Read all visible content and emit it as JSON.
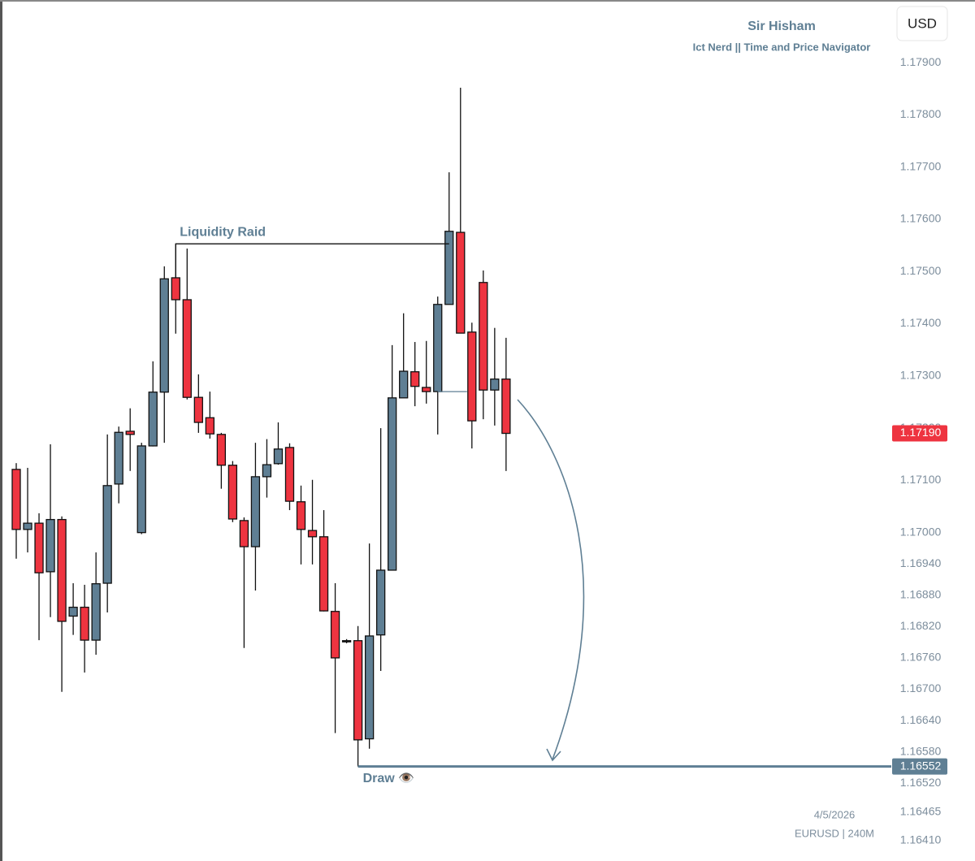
{
  "header": {
    "title": "Sir Hisham",
    "subtitle": "Ict Nerd || Time and Price Navigator",
    "currency": "USD"
  },
  "footer": {
    "date": "4/5/2026",
    "symbol": "EURUSD | 240M"
  },
  "chart_data": {
    "type": "candlestick",
    "bull_color": "#5f7f94",
    "bear_color": "#ee3440",
    "open": [
      1.17121,
      1.17006,
      1.17018,
      1.16925,
      1.17025,
      1.1684,
      1.16857,
      1.16794,
      1.16903,
      1.17093,
      1.17194,
      1.17,
      1.17166,
      1.17269,
      1.17488,
      1.17446,
      1.17259,
      1.1722,
      1.17188,
      1.17129,
      1.17023,
      1.16973,
      1.17107,
      1.17132,
      1.17163,
      1.17059,
      1.17004,
      1.16992,
      1.16849,
      1.16793,
      1.16793,
      1.16605,
      1.16804,
      1.16928,
      1.17258,
      1.17308,
      1.17278,
      1.1727,
      1.17437,
      1.17575,
      1.17384,
      1.17479,
      1.17273,
      1.17294
    ],
    "high": [
      1.17133,
      1.17124,
      1.17037,
      1.17169,
      1.17031,
      1.16903,
      1.169,
      1.16962,
      1.17188,
      1.17203,
      1.17238,
      1.17172,
      1.17328,
      1.1751,
      1.17553,
      1.17544,
      1.17303,
      1.1727,
      1.17191,
      1.17137,
      1.17029,
      1.17172,
      1.17179,
      1.17211,
      1.17171,
      1.1709,
      1.17101,
      1.17043,
      1.16903,
      1.16796,
      1.16821,
      1.16979,
      1.172,
      1.17359,
      1.1742,
      1.17365,
      1.17367,
      1.17452,
      1.1769,
      1.17852,
      1.17402,
      1.17502,
      1.17392,
      1.17373
    ],
    "low": [
      1.1695,
      1.16962,
      1.16794,
      1.16838,
      1.16695,
      1.16804,
      1.16732,
      1.16766,
      1.16847,
      1.17056,
      1.17118,
      1.16997,
      1.17165,
      1.17172,
      1.17381,
      1.17255,
      1.17191,
      1.1718,
      1.17084,
      1.1702,
      1.16779,
      1.16889,
      1.17067,
      1.1713,
      1.17043,
      1.16939,
      1.16939,
      1.16849,
      1.16616,
      1.16788,
      1.16603,
      1.16586,
      1.16735,
      1.16928,
      1.17258,
      1.17242,
      1.17247,
      1.17188,
      1.17437,
      1.17382,
      1.17161,
      1.17217,
      1.17205,
      1.17118
    ],
    "close": [
      1.17006,
      1.17018,
      1.16923,
      1.17025,
      1.1683,
      1.16857,
      1.16794,
      1.16902,
      1.1709,
      1.17192,
      1.17188,
      1.17166,
      1.17269,
      1.17486,
      1.17446,
      1.17259,
      1.17211,
      1.17189,
      1.17129,
      1.17026,
      1.16973,
      1.17107,
      1.1713,
      1.1716,
      1.1706,
      1.17006,
      1.16992,
      1.1685,
      1.1676,
      1.16793,
      1.16603,
      1.16802,
      1.16928,
      1.17258,
      1.17309,
      1.1728,
      1.1727,
      1.17437,
      1.17577,
      1.17382,
      1.17214,
      1.17273,
      1.17294,
      1.1719
    ],
    "ylim": [
      1.16371,
      1.1802
    ],
    "yticks": [
      {
        "value": 1.179,
        "label": "1.17900"
      },
      {
        "value": 1.178,
        "label": "1.17800"
      },
      {
        "value": 1.177,
        "label": "1.17700"
      },
      {
        "value": 1.176,
        "label": "1.17600"
      },
      {
        "value": 1.175,
        "label": "1.17500"
      },
      {
        "value": 1.174,
        "label": "1.17400"
      },
      {
        "value": 1.173,
        "label": "1.17300"
      },
      {
        "value": 1.172,
        "label": "1.17200"
      },
      {
        "value": 1.171,
        "label": "1.17100"
      },
      {
        "value": 1.17,
        "label": "1.17000"
      },
      {
        "value": 1.1694,
        "label": "1.16940"
      },
      {
        "value": 1.1688,
        "label": "1.16880"
      },
      {
        "value": 1.1682,
        "label": "1.16820"
      },
      {
        "value": 1.1676,
        "label": "1.16760"
      },
      {
        "value": 1.167,
        "label": "1.16700"
      },
      {
        "value": 1.1664,
        "label": "1.16640"
      },
      {
        "value": 1.1658,
        "label": "1.16580"
      },
      {
        "value": 1.1652,
        "label": "1.16520"
      },
      {
        "value": 1.16465,
        "label": "1.16465"
      },
      {
        "value": 1.1641,
        "label": "1.16410"
      }
    ],
    "last_price": {
      "value": 1.1719,
      "label": "1.17190",
      "color": "#ee3440"
    },
    "annotations": [
      {
        "text": "Liquidity Raid",
        "level": 1.17553
      },
      {
        "text": "Draw 👁️",
        "level": 1.16552,
        "label": "1.16552",
        "color": "#5f7f94"
      }
    ]
  }
}
